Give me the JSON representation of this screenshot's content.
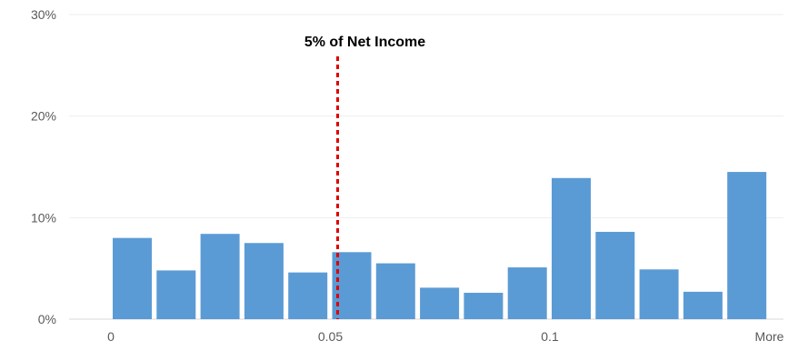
{
  "chart_data": {
    "type": "bar",
    "title": "",
    "xlabel": "",
    "ylabel": "",
    "ylim": [
      0,
      0.3
    ],
    "yticks": [
      0,
      0.1,
      0.2,
      0.3
    ],
    "ytick_labels": [
      "0%",
      "10%",
      "20%",
      "30%"
    ],
    "xticks": [
      {
        "label": "0",
        "at_bin": 0
      },
      {
        "label": "0.05",
        "at_bin": 5
      },
      {
        "label": "0.1",
        "at_bin": 10
      },
      {
        "label": "More",
        "at_bin": 15
      }
    ],
    "values": [
      0.08,
      0.048,
      0.084,
      0.075,
      0.046,
      0.066,
      0.055,
      0.031,
      0.026,
      0.051,
      0.139,
      0.086,
      0.049,
      0.027,
      0.145
    ],
    "bar_color": "#5b9bd5",
    "grid": true,
    "grid_color": "#eeeeee",
    "annotation": {
      "text": "5% of Net Income",
      "bin_position": 5.0,
      "line_color": "#e00000",
      "line_style": "dashed"
    }
  }
}
